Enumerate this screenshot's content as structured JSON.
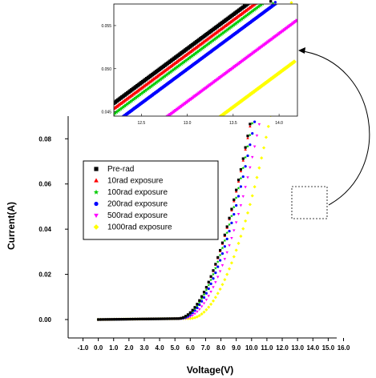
{
  "chart_data": [
    {
      "type": "scatter",
      "title": "",
      "xlabel": "Voltage(V)",
      "ylabel": "Current(A)",
      "xlim": [
        -1.0,
        16.0
      ],
      "ylim": [
        -0.005,
        0.09
      ],
      "x_ticks": [
        "-1.0",
        "0.0",
        "1.0",
        "2.0",
        "3.0",
        "4.0",
        "5.0",
        "6.0",
        "7.0",
        "8.0",
        "9.0",
        "10.0",
        "11.0",
        "12.0",
        "13.0",
        "14.0",
        "15.0",
        "16.0"
      ],
      "y_ticks": [
        "0.00",
        "0.02",
        "0.04",
        "0.06",
        "0.08"
      ],
      "legend_position": "upper-left",
      "series": [
        {
          "name": "Pre-rad",
          "color": "#000000",
          "marker": "square",
          "knee_v": 5.2,
          "k": 0.0041
        },
        {
          "name": "10rad exposure",
          "color": "#ff0000",
          "marker": "triangle-up",
          "knee_v": 5.2,
          "k": 0.00405
        },
        {
          "name": "100rad exposure",
          "color": "#00cc00",
          "marker": "star",
          "knee_v": 5.25,
          "k": 0.00395
        },
        {
          "name": "200rad exposure",
          "color": "#0000ff",
          "marker": "circle",
          "knee_v": 5.35,
          "k": 0.0039
        },
        {
          "name": "500rad exposure",
          "color": "#ff00ff",
          "marker": "triangle-down",
          "knee_v": 5.55,
          "k": 0.0037
        },
        {
          "name": "1000rad exposure",
          "color": "#ffff00",
          "marker": "diamond",
          "knee_v": 6.0,
          "k": 0.00345
        }
      ]
    },
    {
      "type": "scatter",
      "role": "inset-zoom",
      "xlim": [
        12.2,
        14.2
      ],
      "ylim": [
        0.0445,
        0.0575
      ],
      "x_ticks": [
        "12.5",
        "13.0",
        "13.5",
        "14.0"
      ],
      "y_ticks": [
        "0.045",
        "0.050",
        "0.055"
      ]
    }
  ]
}
